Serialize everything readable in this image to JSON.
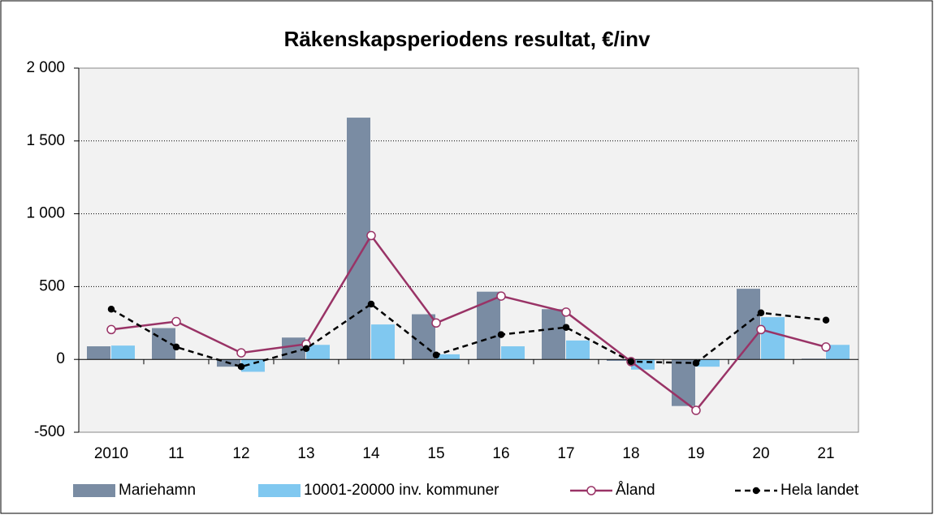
{
  "chart_data": {
    "type": "bar",
    "title": "Räkenskapsperiodens resultat, €/inv",
    "categories": [
      "2010",
      "11",
      "12",
      "13",
      "14",
      "15",
      "16",
      "17",
      "18",
      "19",
      "20",
      "21"
    ],
    "series": [
      {
        "name": "Mariehamn",
        "type": "bar",
        "color": "#7a8ca3",
        "values": [
          90,
          215,
          -50,
          150,
          1660,
          310,
          465,
          345,
          -10,
          -320,
          485,
          5
        ]
      },
      {
        "name": "10001-20000 inv. kommuner",
        "type": "bar",
        "color": "#80c8f0",
        "values": [
          95,
          0,
          -85,
          100,
          240,
          35,
          90,
          130,
          -70,
          -50,
          290,
          100
        ]
      },
      {
        "name": "Åland",
        "type": "line",
        "color": "#993366",
        "marker": "open",
        "values": [
          205,
          260,
          45,
          105,
          850,
          250,
          435,
          325,
          -15,
          -350,
          205,
          85
        ]
      },
      {
        "name": "Hela landet",
        "type": "line",
        "color": "#000000",
        "marker": "filled",
        "line_style": "dashed",
        "values": [
          345,
          85,
          -50,
          75,
          380,
          30,
          170,
          220,
          -15,
          -25,
          320,
          270
        ]
      }
    ],
    "ylim": [
      -500,
      2000
    ],
    "yticks": [
      -500,
      0,
      500,
      {
        "value": 1000,
        "label": "1 000"
      },
      {
        "value": 1500,
        "label": "1 500"
      },
      {
        "value": 2000,
        "label": "2 000"
      }
    ],
    "grid": true,
    "legend": "bottom"
  }
}
